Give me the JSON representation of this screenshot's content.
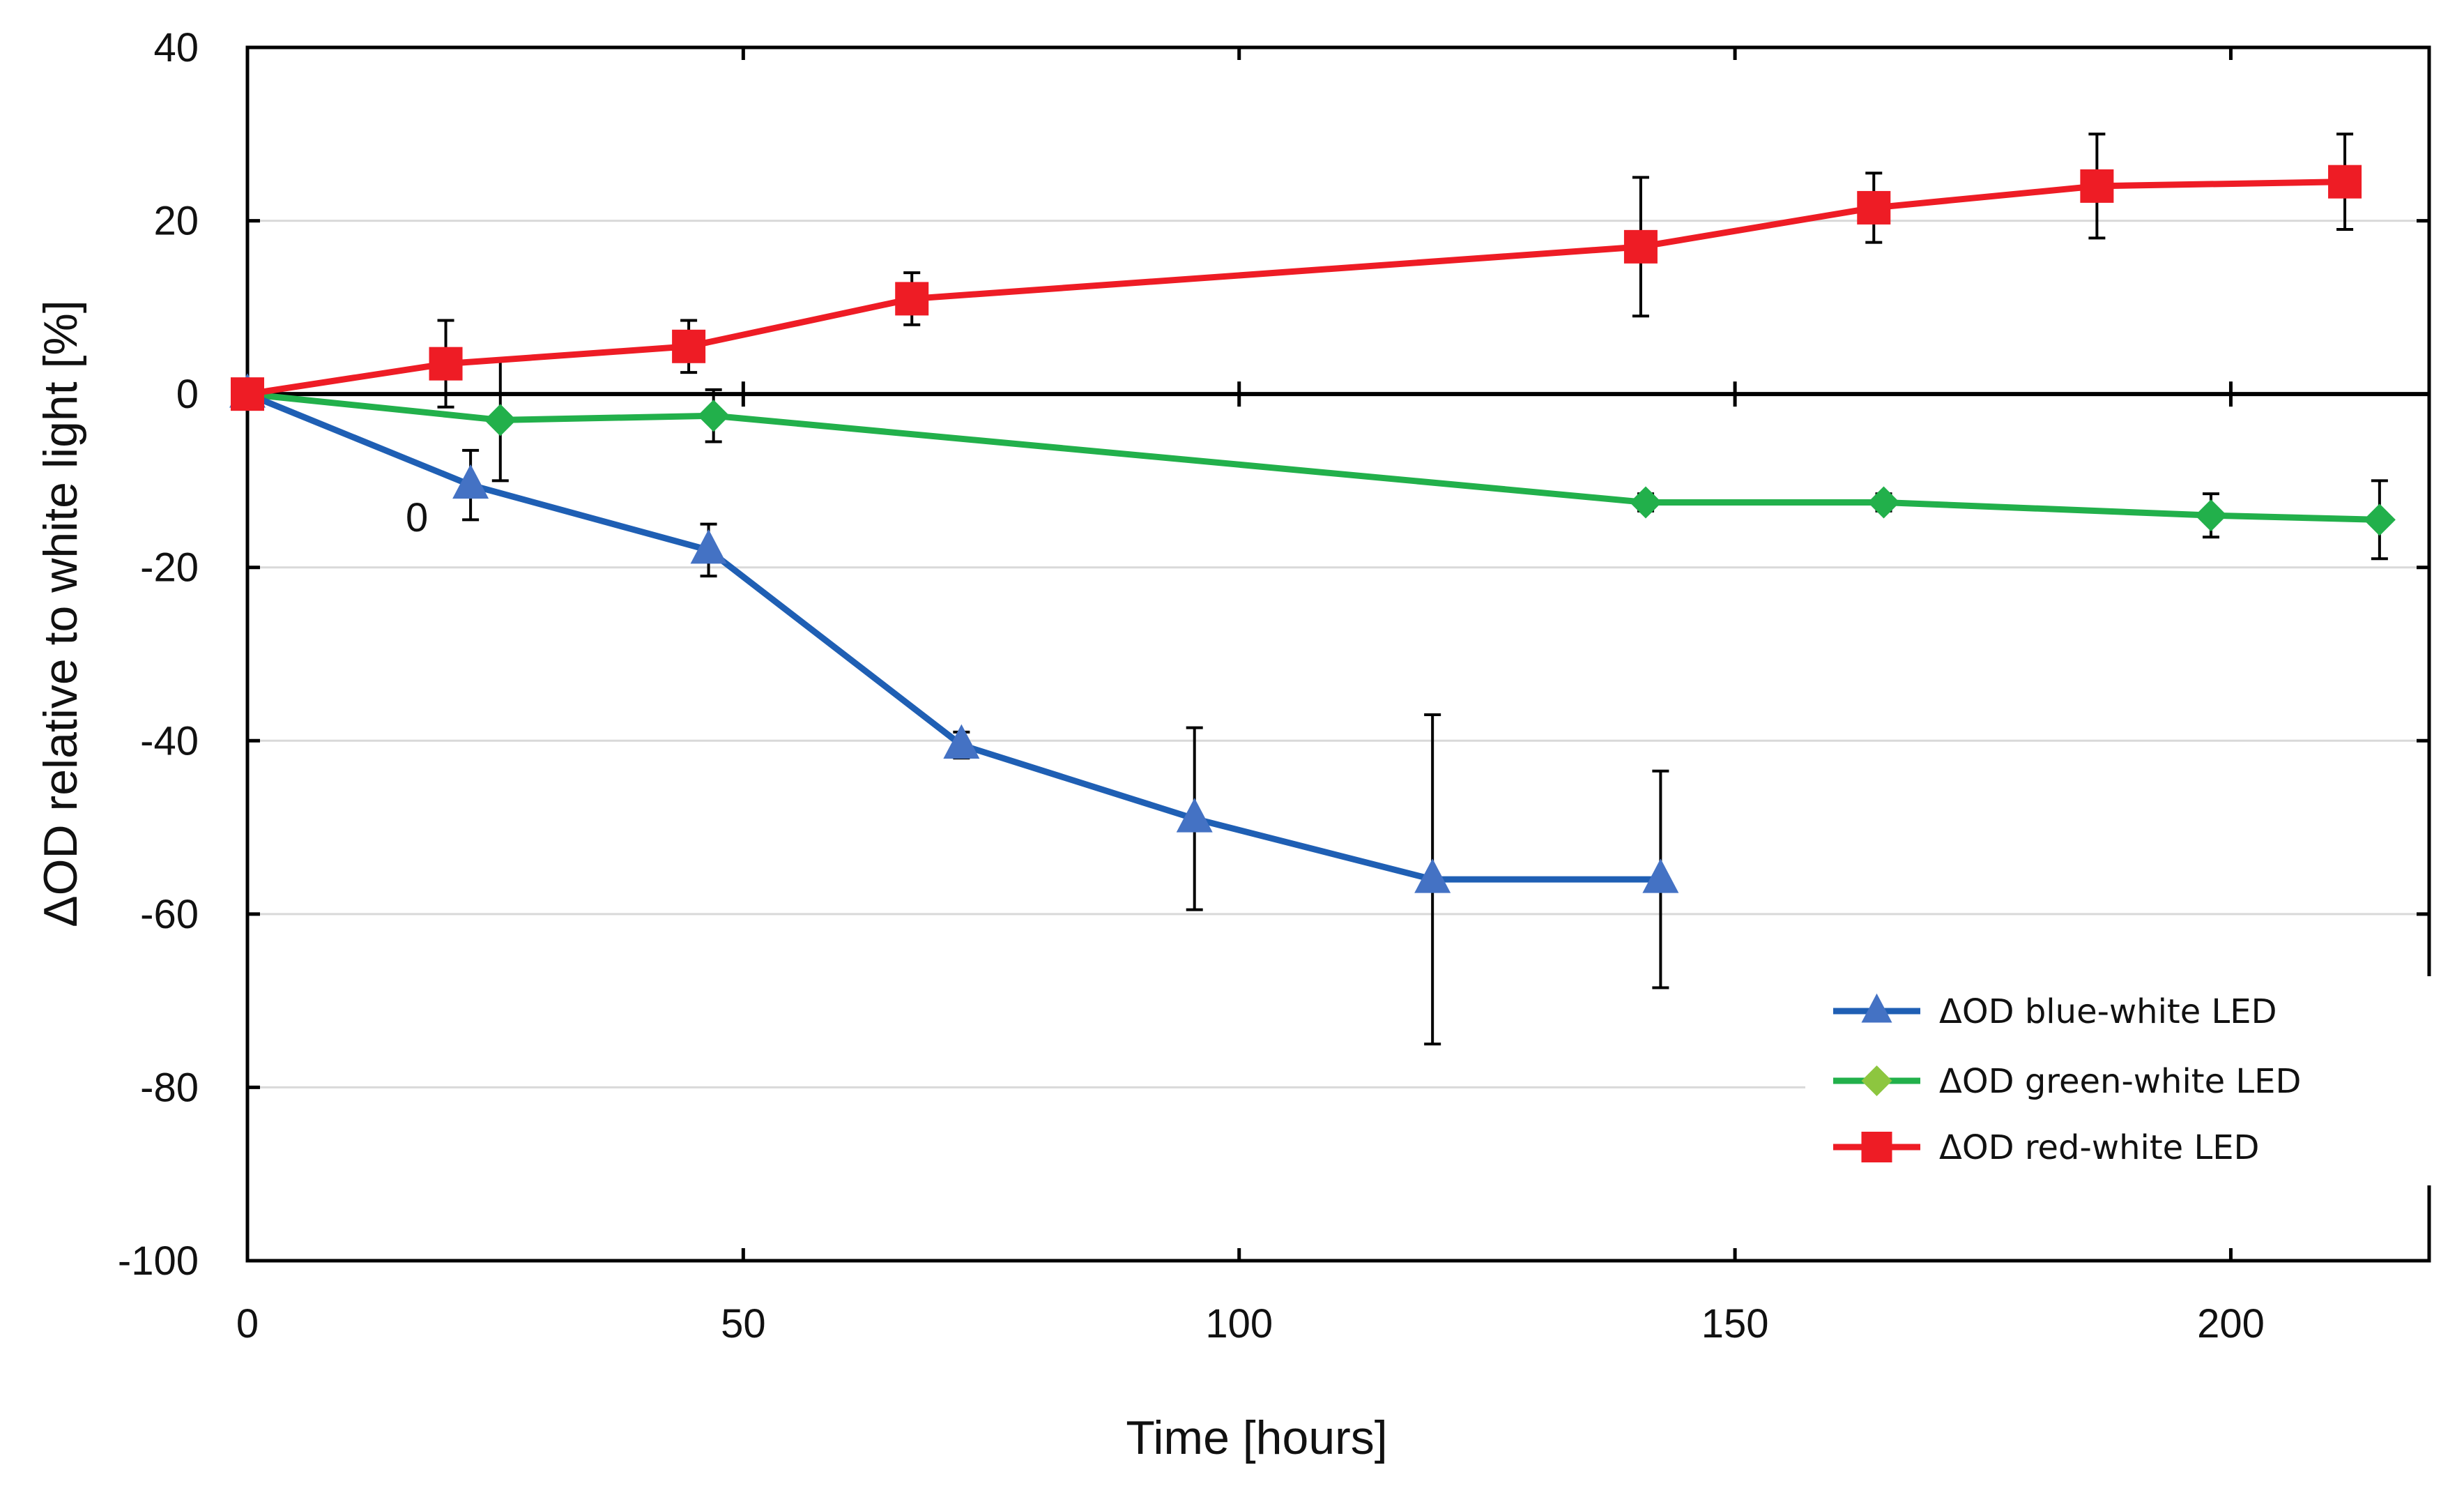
{
  "chart_data": {
    "type": "line",
    "title": "",
    "xlabel": "Time [hours]",
    "ylabel": "ΔOD relative to white light [%]",
    "xlim": [
      0,
      220
    ],
    "ylim": [
      -100,
      40
    ],
    "x_ticks": [
      0,
      50,
      100,
      150,
      200
    ],
    "y_ticks": [
      40,
      20,
      0,
      -20,
      -40,
      -60,
      -80,
      -100
    ],
    "grid": "horizontal",
    "legend_position": "bottom-right",
    "annotation": "0",
    "series": [
      {
        "name": "ΔOD blue-white LED",
        "color": "#1f5fb4",
        "marker": "triangle",
        "marker_color": "#4472c4",
        "x": [
          0,
          22.5,
          46.5,
          72,
          95.5,
          119.5,
          142.5
        ],
        "y": [
          0,
          -10.5,
          -18,
          -40.5,
          -49,
          -56,
          -56
        ],
        "err": [
          0,
          4,
          3,
          1.5,
          10.5,
          19,
          12.5
        ]
      },
      {
        "name": "ΔOD green-white LED",
        "color": "#22b04b",
        "marker": "diamond",
        "marker_color": "#22b04b",
        "legend_marker_color": "#8dc63f",
        "x": [
          0,
          25.5,
          47,
          141,
          165,
          198,
          215
        ],
        "y": [
          0,
          -3,
          -2.5,
          -12.5,
          -12.5,
          -14,
          -14.5
        ],
        "err": [
          0,
          7,
          3,
          1,
          1,
          2.5,
          4.5
        ]
      },
      {
        "name": "ΔOD red-white LED",
        "color": "#ee1c25",
        "marker": "square",
        "marker_color": "#ee1c25",
        "x": [
          0,
          20,
          44.5,
          67,
          140.5,
          164,
          186.5,
          211.5
        ],
        "y": [
          0,
          3.5,
          5.5,
          11,
          17,
          21.5,
          24,
          24.5
        ],
        "err": [
          0,
          5,
          3,
          3,
          8,
          4,
          6,
          5.5
        ]
      }
    ]
  }
}
